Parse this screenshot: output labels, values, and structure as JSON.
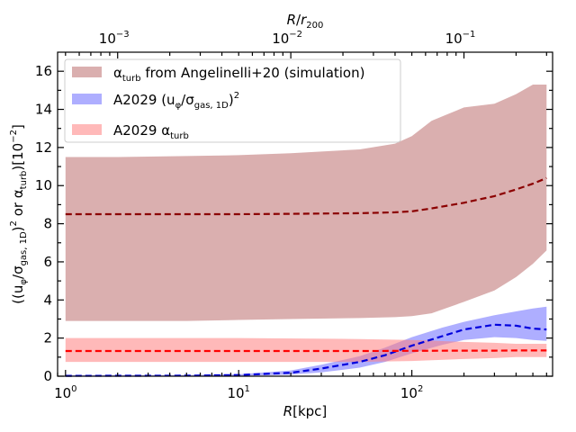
{
  "chart_data": {
    "type": "area",
    "xscale": "log",
    "xlim_kpc": [
      0.9,
      650
    ],
    "ylim": [
      0,
      17
    ],
    "xlabel": "R[kpc]",
    "ylabel": "((u_φ/σ_gas,1D)^2 or α_turb)[10^-2]",
    "top_xlabel": "R/r200",
    "top_axis_kpc_per_r200": 2000,
    "x_ticks_major": [
      {
        "value": 1,
        "label": "10^0",
        "base": "10",
        "exp": "0"
      },
      {
        "value": 10,
        "label": "10^1",
        "base": "10",
        "exp": "1"
      },
      {
        "value": 100,
        "label": "10^2",
        "base": "10",
        "exp": "2"
      }
    ],
    "top_ticks_major": [
      {
        "value": 0.001,
        "label": "10^-3",
        "base": "10",
        "exp": "−3"
      },
      {
        "value": 0.01,
        "label": "10^-2",
        "base": "10",
        "exp": "−2"
      },
      {
        "value": 0.1,
        "label": "10^-1",
        "base": "10",
        "exp": "−1"
      }
    ],
    "y_ticks": [
      0,
      2,
      4,
      6,
      8,
      10,
      12,
      14,
      16
    ],
    "y_ticks_minor": [
      1,
      3,
      5,
      7,
      9,
      11,
      13,
      15
    ],
    "series": [
      {
        "name": "α_turb from Angelinelli+20 (simulation)",
        "legend_main": "α",
        "legend_sub": "turb",
        "legend_rest": " from Angelinelli+20 (simulation)",
        "kind": "band",
        "color": "#bc6e6e",
        "opacity": 0.55,
        "x": [
          1,
          2,
          5,
          10,
          20,
          50,
          80,
          100,
          130,
          200,
          300,
          400,
          500,
          600
        ],
        "lower": [
          2.9,
          2.9,
          2.9,
          2.95,
          3.0,
          3.05,
          3.1,
          3.15,
          3.3,
          3.9,
          4.5,
          5.2,
          5.9,
          6.6
        ],
        "upper": [
          11.5,
          11.5,
          11.55,
          11.6,
          11.7,
          11.9,
          12.2,
          12.6,
          13.4,
          14.1,
          14.3,
          14.8,
          15.3,
          15.3
        ],
        "median_color": "#8b0000",
        "median": [
          8.5,
          8.5,
          8.5,
          8.5,
          8.52,
          8.55,
          8.6,
          8.65,
          8.8,
          9.1,
          9.45,
          9.8,
          10.1,
          10.4
        ]
      },
      {
        "name": "A2029 (u_φ/σ_gas,1D)^2",
        "legend_main": "A2029 ",
        "legend_sub": "",
        "legend_rest": "(u_φ/σ_gas,1D)^2",
        "kind": "band",
        "color": "#6b6bff",
        "opacity": 0.55,
        "x": [
          1,
          5,
          10,
          20,
          30,
          50,
          70,
          100,
          150,
          200,
          300,
          400,
          500,
          600
        ],
        "lower": [
          0.0,
          0.0,
          0.02,
          0.08,
          0.2,
          0.45,
          0.75,
          1.2,
          1.65,
          1.9,
          2.05,
          2.0,
          1.9,
          1.85
        ],
        "upper": [
          0.05,
          0.06,
          0.1,
          0.3,
          0.6,
          1.05,
          1.5,
          2.05,
          2.55,
          2.85,
          3.2,
          3.4,
          3.55,
          3.65
        ],
        "median_color": "#0000dd",
        "median": [
          0.02,
          0.03,
          0.06,
          0.18,
          0.4,
          0.75,
          1.1,
          1.6,
          2.1,
          2.45,
          2.7,
          2.65,
          2.5,
          2.45
        ]
      },
      {
        "name": "A2029 α_turb",
        "legend_main": "A2029 α",
        "legend_sub": "turb",
        "legend_rest": "",
        "kind": "band",
        "color": "#ff8080",
        "opacity": 0.55,
        "x": [
          1,
          10,
          50,
          100,
          200,
          300,
          400,
          500,
          600
        ],
        "lower": [
          0.75,
          0.75,
          0.75,
          0.8,
          0.9,
          0.95,
          1.0,
          1.0,
          1.0
        ],
        "upper": [
          2.0,
          2.0,
          1.95,
          1.9,
          1.8,
          1.75,
          1.7,
          1.7,
          1.7
        ],
        "median_color": "#ff0000",
        "median": [
          1.32,
          1.32,
          1.32,
          1.33,
          1.34,
          1.34,
          1.35,
          1.35,
          1.35
        ]
      }
    ],
    "legend_position": "upper-left"
  }
}
